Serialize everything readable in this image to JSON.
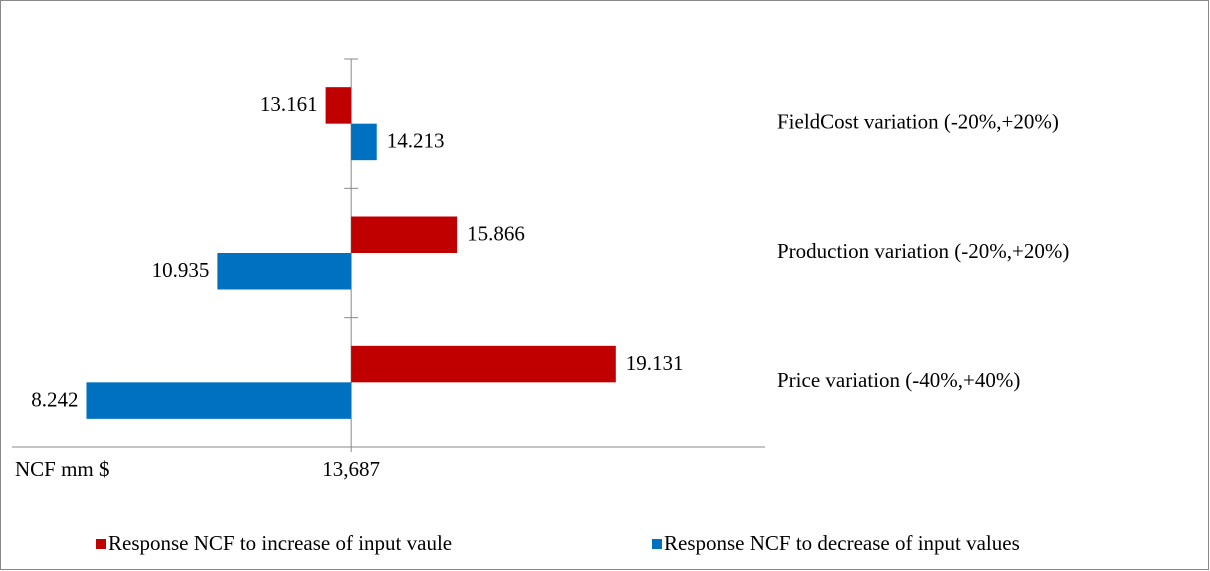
{
  "chart_data": {
    "type": "tornado",
    "categories": [
      "FieldCost variation (-20%,+20%)",
      "Production variation (-20%,+20%)",
      "Price variation (-40%,+40%)"
    ],
    "series": [
      {
        "name": "Response NCF to increase of input vaule",
        "color": "#c00000",
        "values": [
          13.161,
          15.866,
          19.131
        ]
      },
      {
        "name": "Response NCF to decrease of input values",
        "color": "#0070c0",
        "values": [
          14.213,
          10.935,
          8.242
        ]
      }
    ],
    "xlabel": "NCF mm $",
    "xlim": [
      6.71,
      22.2
    ],
    "xticks": [
      {
        "value": 13.687,
        "label": "13,687"
      }
    ],
    "legend": "bottom"
  }
}
